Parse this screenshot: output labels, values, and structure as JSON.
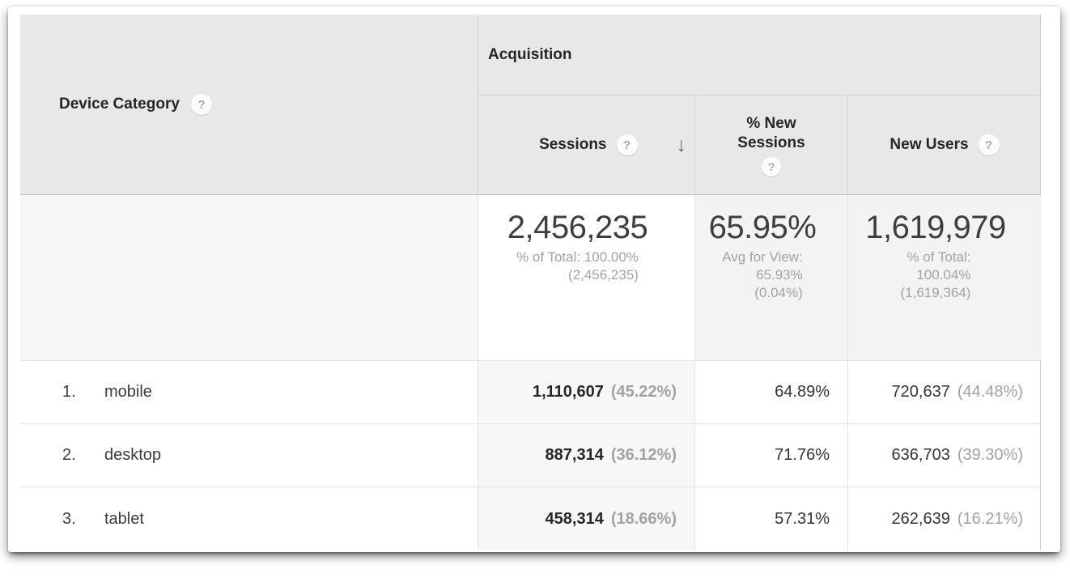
{
  "table": {
    "dimension_header": {
      "label": "Device Category"
    },
    "group_header": {
      "label": "Acquisition"
    },
    "columns": {
      "sessions": {
        "label": "Sessions",
        "sort": "descending"
      },
      "percent_new_sessions": {
        "label": "% New Sessions"
      },
      "new_users": {
        "label": "New Users"
      }
    },
    "totals": {
      "sessions": {
        "value": "2,456,235",
        "note": "% of Total: 100.00%\n(2,456,235)"
      },
      "percent_new_sessions": {
        "value": "65.95%",
        "note": "Avg for View:\n65.93%\n(0.04%)"
      },
      "new_users": {
        "value": "1,619,979",
        "note": "% of Total:\n100.04%\n(1,619,364)"
      }
    },
    "rows": [
      {
        "index": "1.",
        "device": "mobile",
        "sessions": "1,110,607",
        "sessions_pct": "(45.22%)",
        "percent_new_sessions": "64.89%",
        "new_users": "720,637",
        "new_users_pct": "(44.48%)"
      },
      {
        "index": "2.",
        "device": "desktop",
        "sessions": "887,314",
        "sessions_pct": "(36.12%)",
        "percent_new_sessions": "71.76%",
        "new_users": "636,703",
        "new_users_pct": "(39.30%)"
      },
      {
        "index": "3.",
        "device": "tablet",
        "sessions": "458,314",
        "sessions_pct": "(18.66%)",
        "percent_new_sessions": "57.31%",
        "new_users": "262,639",
        "new_users_pct": "(16.21%)"
      }
    ]
  },
  "icons": {
    "help": "?",
    "sort_descending": "↓"
  },
  "colors": {
    "header_bg": "#e8e8e8",
    "sorted_column_bg": "#f7f7f7",
    "totals_bg": "#f3f3f3",
    "muted_text": "#a2a2a2",
    "text": "#2a2a2a"
  }
}
